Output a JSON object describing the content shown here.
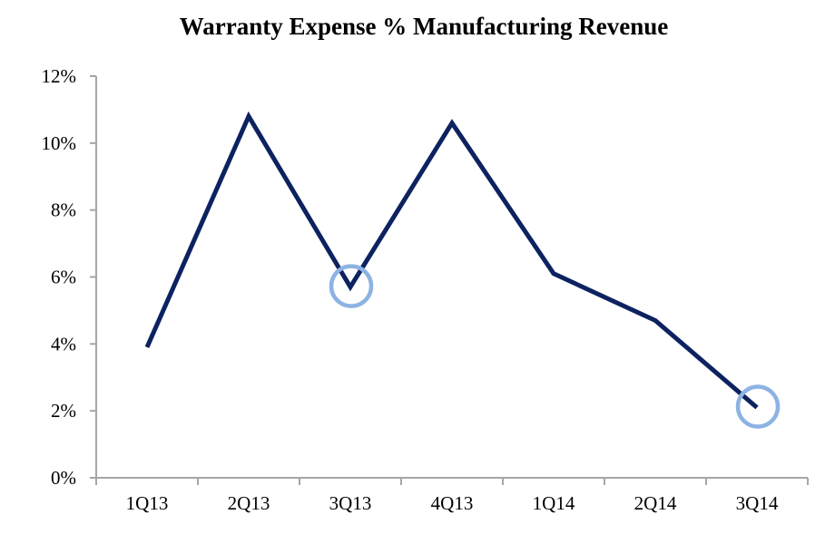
{
  "chart_data": {
    "type": "line",
    "title": "Warranty Expense % Manufacturing Revenue",
    "xlabel": "",
    "ylabel": "",
    "categories": [
      "1Q13",
      "2Q13",
      "3Q13",
      "4Q13",
      "1Q14",
      "2Q14",
      "3Q14"
    ],
    "series": [
      {
        "values": [
          3.9,
          10.8,
          5.7,
          10.6,
          6.1,
          4.7,
          2.1
        ],
        "color": "#0d2260"
      }
    ],
    "ylim": [
      0,
      12
    ],
    "yticks": [
      "0%",
      "2%",
      "4%",
      "6%",
      "8%",
      "10%",
      "12%"
    ],
    "grid": false,
    "legend": "none",
    "highlighted_points": [
      "3Q13",
      "3Q14"
    ],
    "highlight_color": "#8db3e2",
    "axis_color": "#a6a6a6"
  }
}
